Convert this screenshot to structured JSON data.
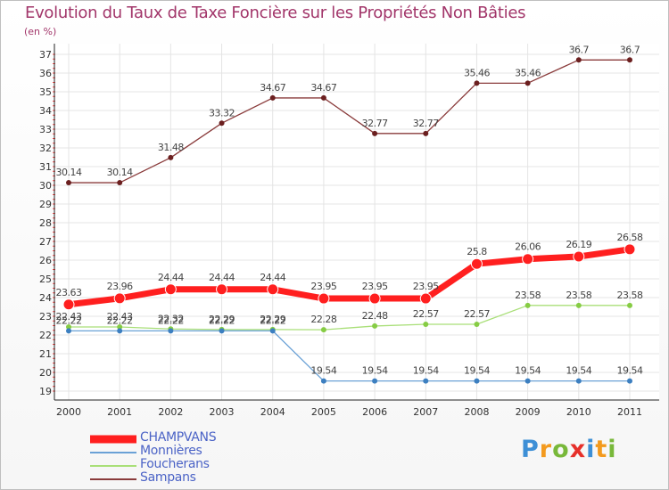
{
  "title": "Evolution du Taux de Taxe Foncière sur les Propriétés Non Bâties",
  "unit_label": "(en %)",
  "logo": {
    "letters": [
      "P",
      "r",
      "o",
      "x",
      "i",
      "t",
      "i"
    ],
    "colors": [
      "#3d8fd6",
      "#f39a1e",
      "#78b83a",
      "#e6302a",
      "#3d8fd6",
      "#f39a1e",
      "#78b83a"
    ]
  },
  "chart_data": {
    "type": "line",
    "title": "Evolution du Taux de Taxe Foncière sur les Propriétés Non Bâties",
    "ylabel": "(en %)",
    "xlabel": "",
    "categories": [
      "2000",
      "2001",
      "2002",
      "2003",
      "2004",
      "2005",
      "2006",
      "2007",
      "2008",
      "2009",
      "2010",
      "2011"
    ],
    "ylim": [
      19,
      37
    ],
    "yticks": [
      "19",
      "20",
      "21",
      "22",
      "23",
      "24",
      "25",
      "26",
      "27",
      "28",
      "29",
      "30",
      "31",
      "32",
      "33",
      "34",
      "35",
      "36",
      "37"
    ],
    "grid": true,
    "series": [
      {
        "name": "CHAMPVANS",
        "color": "#ff1f1f",
        "marker_color": "#ff1f1f",
        "emphasis": true,
        "values": [
          23.63,
          23.96,
          24.44,
          24.44,
          24.44,
          23.95,
          23.95,
          23.95,
          25.8,
          26.06,
          26.19,
          26.58
        ],
        "labels": [
          "23.63",
          "23.96",
          "24.44",
          "24.44",
          "24.44",
          "23.95",
          "23.95",
          "23.95",
          "25.8",
          "26.06",
          "26.19",
          "26.58"
        ]
      },
      {
        "name": "Monnières",
        "color": "#6aa1d6",
        "marker_color": "#3c7fc0",
        "emphasis": false,
        "values": [
          22.22,
          22.22,
          22.22,
          22.22,
          22.22,
          19.54,
          19.54,
          19.54,
          19.54,
          19.54,
          19.54,
          19.54
        ],
        "labels": [
          "22.22",
          "22.22",
          "22.22",
          "22.22",
          "22.22",
          "19.54",
          "19.54",
          "19.54",
          "19.54",
          "19.54",
          "19.54",
          "19.54"
        ]
      },
      {
        "name": "Foucherans",
        "color": "#a9df78",
        "marker_color": "#86cc44",
        "emphasis": false,
        "values": [
          22.43,
          22.43,
          22.32,
          22.29,
          22.29,
          22.28,
          22.48,
          22.57,
          22.57,
          23.58,
          23.58,
          23.58
        ],
        "labels": [
          "22.43",
          "22.43",
          "22.32",
          "22.29",
          "22.29",
          "22.28",
          "22.48",
          "22.57",
          "22.57",
          "23.58",
          "23.58",
          "23.58"
        ]
      },
      {
        "name": "Sampans",
        "color": "#8a3b3b",
        "marker_color": "#6b1f1f",
        "emphasis": false,
        "values": [
          30.14,
          30.14,
          31.48,
          33.32,
          34.67,
          34.67,
          32.77,
          32.77,
          35.46,
          35.46,
          36.7,
          36.7
        ],
        "labels": [
          "30.14",
          "30.14",
          "31.48",
          "33.32",
          "34.67",
          "34.67",
          "32.77",
          "32.77",
          "35.46",
          "35.46",
          "36.7",
          "36.7"
        ]
      }
    ],
    "legend": [
      "CHAMPVANS",
      "Monnières",
      "Foucherans",
      "Sampans"
    ],
    "legend_position": "bottom-left"
  }
}
